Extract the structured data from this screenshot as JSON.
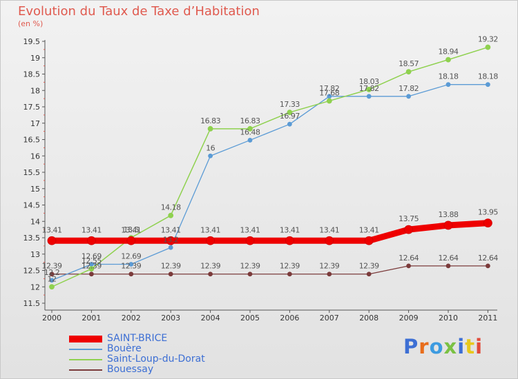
{
  "header": {
    "title": "Evolution du Taux de Taxe d’Habitation",
    "subtitle": "(en %)"
  },
  "logo": {
    "text": "Proxiti",
    "letter_colors": [
      "#3d6fd4",
      "#e86d1c",
      "#3d9be0",
      "#7ac143",
      "#3d6fd4",
      "#e8c81c",
      "#e14a3a"
    ]
  },
  "chart_data": {
    "type": "line",
    "title": "Evolution du Taux de Taxe d’Habitation",
    "subtitle": "(en %)",
    "x": [
      "2000",
      "2001",
      "2002",
      "2003",
      "2004",
      "2005",
      "2006",
      "2007",
      "2008",
      "2009",
      "2010",
      "2011"
    ],
    "ylim": [
      11.5,
      19.5
    ],
    "yticks": [
      "11.5",
      "12",
      "12.5",
      "13",
      "13.5",
      "14",
      "14.5",
      "15",
      "15.5",
      "16",
      "16.5",
      "17",
      "17.5",
      "18",
      "18.5",
      "19",
      "19.5"
    ],
    "grid": false,
    "legend_position": "bottom-left",
    "series": [
      {
        "name": "SAINT-BRICE",
        "color": "#ee0000",
        "values": [
          13.41,
          13.41,
          13.41,
          13.41,
          13.41,
          13.41,
          13.41,
          13.41,
          13.41,
          13.75,
          13.88,
          13.95
        ],
        "labels": [
          "13.41",
          "13.41",
          "13.41",
          "13.41",
          "13.41",
          "13.41",
          "13.41",
          "13.41",
          "13.41",
          "13.75",
          "13.88",
          "13.95"
        ]
      },
      {
        "name": "Bouère",
        "color": "#5b9bd5",
        "values": [
          12.2,
          12.69,
          12.69,
          13.2,
          16,
          16.48,
          16.97,
          17.82,
          17.82,
          17.82,
          18.18,
          18.18
        ],
        "labels": [
          "12.2",
          "12.69",
          "12.69",
          "13.2",
          "16",
          "16.48",
          "16.97",
          "17.82",
          "17.82",
          "17.82",
          "18.18",
          "18.18"
        ]
      },
      {
        "name": "Saint-Loup-du-Dorat",
        "color": "#8fd14f",
        "values": [
          12,
          12.55,
          13.5,
          14.18,
          16.83,
          16.83,
          17.33,
          17.68,
          18.03,
          18.57,
          18.94,
          19.32
        ],
        "labels": [
          "12",
          "12.55",
          "13.5",
          "14.18",
          "16.83",
          "16.83",
          "17.33",
          "17.68",
          "18.03",
          "18.57",
          "18.94",
          "19.32"
        ]
      },
      {
        "name": "Bouessay",
        "color": "#7b3b3b",
        "values": [
          12.39,
          12.39,
          12.39,
          12.39,
          12.39,
          12.39,
          12.39,
          12.39,
          12.39,
          12.64,
          12.64,
          12.64
        ],
        "labels": [
          "12.39",
          "12.39",
          "12.39",
          "12.39",
          "12.39",
          "12.39",
          "12.39",
          "12.39",
          "12.39",
          "12.64",
          "12.64",
          "12.64"
        ]
      }
    ]
  }
}
